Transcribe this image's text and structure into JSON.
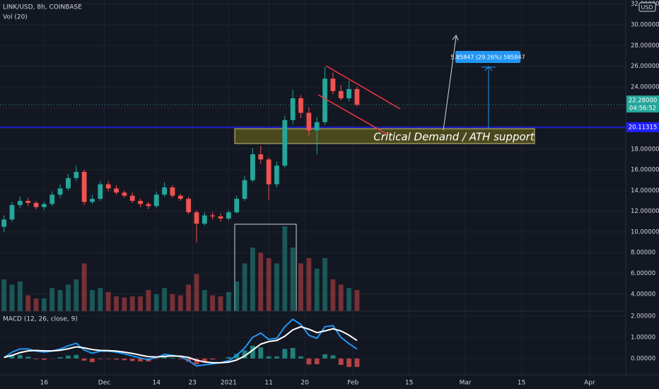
{
  "chart_data": {
    "type": "candlestick",
    "title": "LINK/USD, 8h, COINBASE",
    "volume_label": "Vol (20)",
    "macd_label": "MACD (12, 26, close, 9)",
    "currency": "USD",
    "x": [
      1,
      3,
      5,
      7,
      9,
      11,
      13,
      15,
      17,
      19,
      21,
      23,
      25,
      27,
      29,
      31,
      33,
      35,
      37,
      39,
      41,
      43,
      45,
      47,
      49,
      51,
      53,
      55,
      57,
      59,
      61,
      63,
      65,
      67,
      69,
      71,
      73,
      75,
      77,
      79,
      81,
      83,
      85,
      87,
      89
    ],
    "open": [
      10.5,
      11.2,
      12.6,
      13.0,
      12.8,
      12.4,
      12.7,
      13.6,
      14.2,
      15.2,
      15.8,
      12.9,
      13.2,
      14.6,
      14.2,
      13.8,
      13.5,
      13.0,
      12.7,
      12.5,
      13.6,
      14.3,
      13.5,
      13.2,
      11.9,
      10.8,
      11.6,
      11.5,
      11.3,
      11.9,
      13.2,
      15.0,
      17.5,
      17.0,
      14.6,
      16.4,
      20.8,
      22.9,
      21.5,
      19.8,
      20.6,
      24.8,
      23.6,
      22.9,
      23.8
    ],
    "high": [
      11.6,
      12.9,
      13.4,
      13.3,
      13.0,
      12.9,
      13.9,
      14.6,
      15.6,
      16.4,
      16.0,
      13.6,
      14.9,
      14.9,
      14.5,
      14.0,
      13.8,
      13.2,
      12.9,
      13.9,
      14.8,
      14.5,
      13.7,
      13.4,
      12.1,
      11.9,
      11.9,
      11.8,
      12.1,
      13.5,
      15.4,
      18.1,
      18.3,
      17.2,
      16.8,
      21.2,
      23.7,
      23.2,
      22.0,
      21.1,
      25.9,
      25.4,
      24.2,
      24.6,
      24.0
    ],
    "low": [
      10.0,
      11.0,
      12.3,
      12.5,
      12.2,
      12.1,
      12.5,
      13.3,
      14.0,
      14.9,
      12.6,
      12.7,
      13.0,
      13.9,
      13.6,
      13.3,
      12.8,
      12.4,
      12.2,
      12.3,
      13.4,
      13.3,
      13.0,
      11.7,
      9.0,
      10.6,
      11.2,
      11.0,
      11.1,
      11.8,
      13.0,
      14.8,
      16.6,
      13.1,
      14.3,
      16.2,
      20.4,
      21.0,
      19.3,
      17.5,
      20.3,
      23.3,
      22.7,
      22.6,
      22.1
    ],
    "close": [
      11.2,
      12.6,
      13.0,
      12.8,
      12.4,
      12.7,
      13.6,
      14.2,
      15.2,
      15.8,
      12.9,
      13.2,
      14.6,
      14.2,
      13.8,
      13.5,
      13.0,
      12.7,
      12.5,
      13.6,
      14.3,
      13.5,
      13.2,
      11.9,
      10.8,
      11.6,
      11.5,
      11.3,
      11.9,
      13.2,
      15.0,
      17.5,
      17.0,
      14.6,
      16.4,
      20.8,
      22.9,
      21.5,
      19.8,
      20.6,
      24.8,
      23.6,
      22.9,
      23.8,
      22.28
    ],
    "volume": [
      30,
      25,
      28,
      15,
      12,
      12,
      22,
      20,
      25,
      30,
      45,
      20,
      22,
      18,
      14,
      13,
      14,
      14,
      20,
      16,
      22,
      16,
      15,
      25,
      35,
      20,
      15,
      14,
      18,
      28,
      45,
      60,
      55,
      50,
      45,
      80,
      60,
      45,
      50,
      40,
      50,
      30,
      25,
      22,
      20
    ],
    "macd": [
      0.05,
      0.3,
      0.45,
      0.45,
      0.35,
      0.3,
      0.35,
      0.45,
      0.6,
      0.72,
      0.4,
      0.25,
      0.35,
      0.35,
      0.3,
      0.22,
      0.12,
      0.02,
      -0.05,
      0.05,
      0.2,
      0.15,
      0.08,
      -0.1,
      -0.35,
      -0.3,
      -0.25,
      -0.2,
      -0.1,
      0.15,
      0.5,
      1.0,
      1.2,
      0.9,
      0.95,
      1.5,
      1.85,
      1.6,
      1.1,
      0.95,
      1.5,
      1.55,
      1.0,
      0.7,
      0.45
    ],
    "signal": [
      0.05,
      0.15,
      0.28,
      0.36,
      0.38,
      0.36,
      0.36,
      0.39,
      0.46,
      0.55,
      0.5,
      0.42,
      0.38,
      0.37,
      0.35,
      0.3,
      0.24,
      0.16,
      0.09,
      0.07,
      0.1,
      0.12,
      0.11,
      0.05,
      -0.08,
      -0.16,
      -0.2,
      -0.2,
      -0.17,
      -0.07,
      0.12,
      0.4,
      0.68,
      0.8,
      0.85,
      1.05,
      1.35,
      1.5,
      1.38,
      1.22,
      1.3,
      1.4,
      1.3,
      1.1,
      0.85
    ],
    "histogram": [
      0,
      0.15,
      0.17,
      0.09,
      -0.03,
      -0.06,
      -0.01,
      0.06,
      0.14,
      0.17,
      -0.1,
      -0.17,
      -0.03,
      -0.02,
      -0.05,
      -0.08,
      -0.12,
      -0.14,
      -0.14,
      -0.02,
      0.1,
      0.03,
      -0.03,
      -0.15,
      -0.27,
      -0.14,
      -0.05,
      0,
      0.07,
      0.22,
      0.38,
      0.6,
      0.52,
      0.1,
      0.1,
      0.45,
      0.5,
      0.1,
      -0.28,
      -0.27,
      0.2,
      0.15,
      -0.3,
      -0.4,
      -0.4
    ],
    "up_color": "#26a69a",
    "down_color": "#ef5350",
    "macd_color": "#2196f3",
    "signal_color": "#ffffff",
    "xlim": [
      0,
      156
    ],
    "xticks": [
      {
        "value": 11,
        "label": "16"
      },
      {
        "value": 26,
        "label": "Dec"
      },
      {
        "value": 39,
        "label": "14"
      },
      {
        "value": 48,
        "label": "23"
      },
      {
        "value": 57,
        "label": "2021"
      },
      {
        "value": 67,
        "label": "11"
      },
      {
        "value": 76,
        "label": "20"
      },
      {
        "value": 88,
        "label": "Feb"
      },
      {
        "value": 102,
        "label": "15"
      },
      {
        "value": 116,
        "label": "Mar"
      },
      {
        "value": 130,
        "label": "15"
      },
      {
        "value": 147,
        "label": "Apr"
      }
    ],
    "ylim": [
      2.35,
      32.39
    ],
    "yticks": [
      {
        "value": 4,
        "label": "4.00000"
      },
      {
        "value": 6,
        "label": "6.00000"
      },
      {
        "value": 8,
        "label": "8.00000"
      },
      {
        "value": 10,
        "label": "10.00000"
      },
      {
        "value": 12,
        "label": "12.00000"
      },
      {
        "value": 14,
        "label": "14.00000"
      },
      {
        "value": 16,
        "label": "16.00000"
      },
      {
        "value": 18,
        "label": "18.00000"
      },
      {
        "value": 20,
        "label": "20.00000"
      },
      {
        "value": 22,
        "label": "22.00000"
      },
      {
        "value": 24,
        "label": "24.00000"
      },
      {
        "value": 26,
        "label": "26.00000"
      },
      {
        "value": 28,
        "label": "28.00000"
      },
      {
        "value": 30,
        "label": "30.00000"
      },
      {
        "value": 32,
        "label": "32.00000"
      }
    ],
    "y2lim": [
      -0.77,
      2.23
    ],
    "y2ticks": [
      {
        "value": 0,
        "label": "0.00000"
      },
      {
        "value": 1,
        "label": "1.00000"
      },
      {
        "value": 2,
        "label": "2.00000"
      }
    ],
    "grid": true,
    "last_price": {
      "value": 22.28,
      "label": "22.28000"
    },
    "countdown": "04:56:52",
    "level": {
      "value": 20.11315,
      "label": "20.11315"
    },
    "annotations": {
      "zone": "Critical Demand / ATH support",
      "measure": "5.85847 (29.26%) 585847"
    }
  }
}
